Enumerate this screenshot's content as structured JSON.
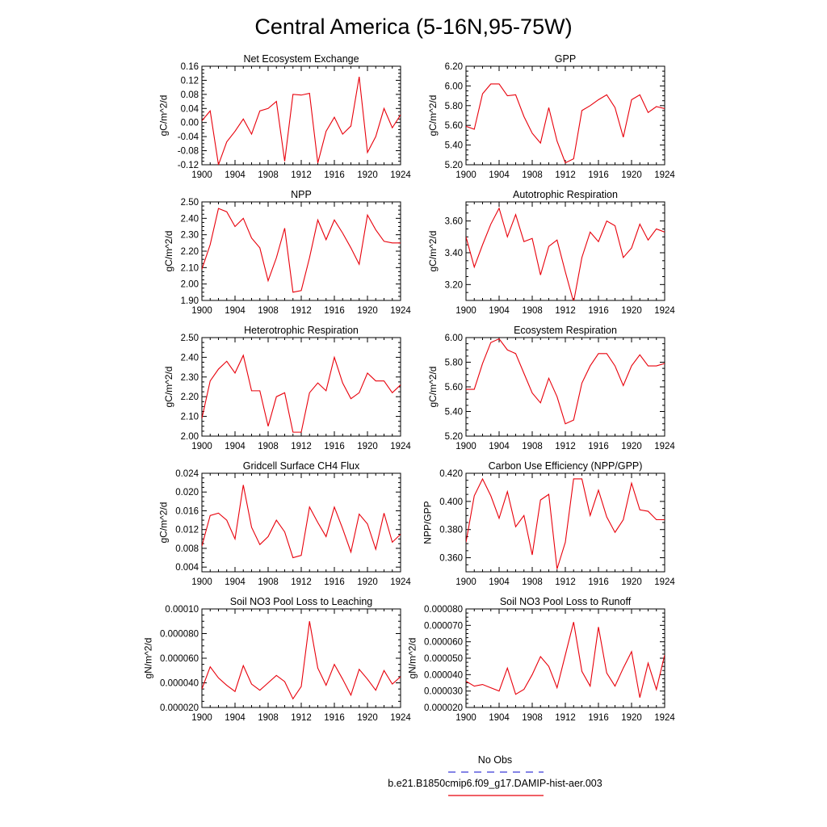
{
  "title": "Central America (5-16N,95-75W)",
  "colors": {
    "model_line": "#e8000b",
    "obs_line": "#3b3bd6"
  },
  "legend": {
    "obs_label": "No Obs",
    "model_label": "b.e21.B1850cmip6.f09_g17.DAMIP-hist-aer.003"
  },
  "chart_data": [
    {
      "type": "line",
      "title": "Net Ecosystem Exchange",
      "ylabel": "gC/m^2/d",
      "xlim": [
        1900,
        1924
      ],
      "ylim": [
        -0.12,
        0.16
      ],
      "xticks": [
        "1900",
        "1904",
        "1908",
        "1912",
        "1916",
        "1920",
        "1924"
      ],
      "yticks": [
        "-0.12",
        "-0.08",
        "-0.04",
        "0.00",
        "0.04",
        "0.08",
        "0.12",
        "0.16"
      ],
      "ytick_values": [
        -0.12,
        -0.08,
        -0.04,
        0.0,
        0.04,
        0.08,
        0.12,
        0.16
      ],
      "x": [
        1900,
        1901,
        1902,
        1903,
        1904,
        1905,
        1906,
        1907,
        1908,
        1909,
        1910,
        1911,
        1912,
        1913,
        1914,
        1915,
        1916,
        1917,
        1918,
        1919,
        1920,
        1921,
        1922,
        1923,
        1924
      ],
      "series": [
        {
          "name": "b.e21.B1850cmip6.f09_g17.DAMIP-hist-aer.003",
          "values": [
            0.005,
            0.033,
            -0.12,
            -0.055,
            -0.025,
            0.01,
            -0.033,
            0.033,
            0.04,
            0.06,
            -0.11,
            0.08,
            0.078,
            0.083,
            -0.115,
            -0.025,
            0.015,
            -0.033,
            -0.01,
            0.13,
            -0.085,
            -0.04,
            0.04,
            -0.015,
            0.022
          ]
        }
      ]
    },
    {
      "type": "line",
      "title": "GPP",
      "ylabel": "gC/m^2/d",
      "xlim": [
        1900,
        1924
      ],
      "ylim": [
        5.2,
        6.2
      ],
      "xticks": [
        "1900",
        "1904",
        "1908",
        "1912",
        "1916",
        "1920",
        "1924"
      ],
      "yticks": [
        "5.20",
        "5.40",
        "5.60",
        "5.80",
        "6.00",
        "6.20"
      ],
      "ytick_values": [
        5.2,
        5.4,
        5.6,
        5.8,
        6.0,
        6.2
      ],
      "x": [
        1900,
        1901,
        1902,
        1903,
        1904,
        1905,
        1906,
        1907,
        1908,
        1909,
        1910,
        1911,
        1912,
        1913,
        1914,
        1915,
        1916,
        1917,
        1918,
        1919,
        1920,
        1921,
        1922,
        1923,
        1924
      ],
      "series": [
        {
          "name": "b.e21.B1850cmip6.f09_g17.DAMIP-hist-aer.003",
          "values": [
            5.59,
            5.56,
            5.92,
            6.02,
            6.02,
            5.9,
            5.91,
            5.69,
            5.52,
            5.42,
            5.78,
            5.44,
            5.22,
            5.26,
            5.75,
            5.8,
            5.86,
            5.91,
            5.78,
            5.48,
            5.86,
            5.91,
            5.73,
            5.79,
            5.77
          ]
        }
      ]
    },
    {
      "type": "line",
      "title": "NPP",
      "ylabel": "gC/m^2/d",
      "xlim": [
        1900,
        1924
      ],
      "ylim": [
        1.9,
        2.5
      ],
      "xticks": [
        "1900",
        "1904",
        "1908",
        "1912",
        "1916",
        "1920",
        "1924"
      ],
      "yticks": [
        "1.90",
        "2.00",
        "2.10",
        "2.20",
        "2.30",
        "2.40",
        "2.50"
      ],
      "ytick_values": [
        1.9,
        2.0,
        2.1,
        2.2,
        2.3,
        2.4,
        2.5
      ],
      "x": [
        1900,
        1901,
        1902,
        1903,
        1904,
        1905,
        1906,
        1907,
        1908,
        1909,
        1910,
        1911,
        1912,
        1913,
        1914,
        1915,
        1916,
        1917,
        1918,
        1919,
        1920,
        1921,
        1922,
        1923,
        1924
      ],
      "series": [
        {
          "name": "b.e21.B1850cmip6.f09_g17.DAMIP-hist-aer.003",
          "values": [
            2.09,
            2.24,
            2.46,
            2.44,
            2.35,
            2.4,
            2.28,
            2.22,
            2.02,
            2.16,
            2.34,
            1.95,
            1.96,
            2.16,
            2.39,
            2.27,
            2.39,
            2.31,
            2.22,
            2.12,
            2.42,
            2.33,
            2.26,
            2.25,
            2.25
          ]
        }
      ]
    },
    {
      "type": "line",
      "title": "Autotrophic Respiration",
      "ylabel": "gC/m^2/d",
      "xlim": [
        1900,
        1924
      ],
      "ylim": [
        3.1,
        3.72
      ],
      "xticks": [
        "1900",
        "1904",
        "1908",
        "1912",
        "1916",
        "1920",
        "1924"
      ],
      "yticks": [
        "3.20",
        "3.40",
        "3.60"
      ],
      "ytick_values": [
        3.2,
        3.4,
        3.6
      ],
      "x": [
        1900,
        1901,
        1902,
        1903,
        1904,
        1905,
        1906,
        1907,
        1908,
        1909,
        1910,
        1911,
        1912,
        1913,
        1914,
        1915,
        1916,
        1917,
        1918,
        1919,
        1920,
        1921,
        1922,
        1923,
        1924
      ],
      "series": [
        {
          "name": "b.e21.B1850cmip6.f09_g17.DAMIP-hist-aer.003",
          "values": [
            3.5,
            3.31,
            3.45,
            3.58,
            3.68,
            3.5,
            3.64,
            3.47,
            3.49,
            3.26,
            3.44,
            3.48,
            3.28,
            3.09,
            3.37,
            3.53,
            3.47,
            3.6,
            3.57,
            3.37,
            3.43,
            3.58,
            3.48,
            3.55,
            3.53
          ]
        }
      ]
    },
    {
      "type": "line",
      "title": "Heterotrophic Respiration",
      "ylabel": "gC/m^2/d",
      "xlim": [
        1900,
        1924
      ],
      "ylim": [
        2.0,
        2.5
      ],
      "xticks": [
        "1900",
        "1904",
        "1908",
        "1912",
        "1916",
        "1920",
        "1924"
      ],
      "yticks": [
        "2.00",
        "2.10",
        "2.20",
        "2.30",
        "2.40",
        "2.50"
      ],
      "ytick_values": [
        2.0,
        2.1,
        2.2,
        2.3,
        2.4,
        2.5
      ],
      "x": [
        1900,
        1901,
        1902,
        1903,
        1904,
        1905,
        1906,
        1907,
        1908,
        1909,
        1910,
        1911,
        1912,
        1913,
        1914,
        1915,
        1916,
        1917,
        1918,
        1919,
        1920,
        1921,
        1922,
        1923,
        1924
      ],
      "series": [
        {
          "name": "b.e21.B1850cmip6.f09_g17.DAMIP-hist-aer.003",
          "values": [
            2.09,
            2.28,
            2.34,
            2.38,
            2.32,
            2.41,
            2.23,
            2.23,
            2.05,
            2.2,
            2.22,
            2.02,
            2.02,
            2.22,
            2.27,
            2.23,
            2.4,
            2.27,
            2.19,
            2.22,
            2.32,
            2.28,
            2.28,
            2.22,
            2.26
          ]
        }
      ]
    },
    {
      "type": "line",
      "title": "Ecosystem Respiration",
      "ylabel": "gC/m^2/d",
      "xlim": [
        1900,
        1924
      ],
      "ylim": [
        5.2,
        6.0
      ],
      "xticks": [
        "1900",
        "1904",
        "1908",
        "1912",
        "1916",
        "1920",
        "1924"
      ],
      "yticks": [
        "5.20",
        "5.40",
        "5.60",
        "5.80",
        "6.00"
      ],
      "ytick_values": [
        5.2,
        5.4,
        5.6,
        5.8,
        6.0
      ],
      "x": [
        1900,
        1901,
        1902,
        1903,
        1904,
        1905,
        1906,
        1907,
        1908,
        1909,
        1910,
        1911,
        1912,
        1913,
        1914,
        1915,
        1916,
        1917,
        1918,
        1919,
        1920,
        1921,
        1922,
        1923,
        1924
      ],
      "series": [
        {
          "name": "b.e21.B1850cmip6.f09_g17.DAMIP-hist-aer.003",
          "values": [
            5.58,
            5.58,
            5.79,
            5.96,
            5.99,
            5.9,
            5.87,
            5.71,
            5.55,
            5.47,
            5.67,
            5.52,
            5.3,
            5.33,
            5.63,
            5.77,
            5.87,
            5.87,
            5.77,
            5.61,
            5.77,
            5.86,
            5.77,
            5.77,
            5.79
          ]
        }
      ]
    },
    {
      "type": "line",
      "title": "Gridcell Surface CH4 Flux",
      "ylabel": "gC/m^2/d",
      "xlim": [
        1900,
        1924
      ],
      "ylim": [
        0.003,
        0.024
      ],
      "xticks": [
        "1900",
        "1904",
        "1908",
        "1912",
        "1916",
        "1920",
        "1924"
      ],
      "yticks": [
        "0.004",
        "0.008",
        "0.012",
        "0.016",
        "0.020",
        "0.024"
      ],
      "ytick_values": [
        0.004,
        0.008,
        0.012,
        0.016,
        0.02,
        0.024
      ],
      "x": [
        1900,
        1901,
        1902,
        1903,
        1904,
        1905,
        1906,
        1907,
        1908,
        1909,
        1910,
        1911,
        1912,
        1913,
        1914,
        1915,
        1916,
        1917,
        1918,
        1919,
        1920,
        1921,
        1922,
        1923,
        1924
      ],
      "series": [
        {
          "name": "b.e21.B1850cmip6.f09_g17.DAMIP-hist-aer.003",
          "values": [
            0.0085,
            0.015,
            0.0155,
            0.014,
            0.01,
            0.0215,
            0.0125,
            0.0088,
            0.0105,
            0.014,
            0.0115,
            0.006,
            0.0065,
            0.0168,
            0.0135,
            0.0105,
            0.0168,
            0.0122,
            0.0072,
            0.0153,
            0.0132,
            0.0078,
            0.0155,
            0.0093,
            0.011
          ]
        }
      ]
    },
    {
      "type": "line",
      "title": "Carbon Use Efficiency (NPP/GPP)",
      "ylabel": "NPP/GPP",
      "xlim": [
        1900,
        1924
      ],
      "ylim": [
        0.35,
        0.42
      ],
      "xticks": [
        "1900",
        "1904",
        "1908",
        "1912",
        "1916",
        "1920",
        "1924"
      ],
      "yticks": [
        "0.360",
        "0.380",
        "0.400",
        "0.420"
      ],
      "ytick_values": [
        0.36,
        0.38,
        0.4,
        0.42
      ],
      "x": [
        1900,
        1901,
        1902,
        1903,
        1904,
        1905,
        1906,
        1907,
        1908,
        1909,
        1910,
        1911,
        1912,
        1913,
        1914,
        1915,
        1916,
        1917,
        1918,
        1919,
        1920,
        1921,
        1922,
        1923,
        1924
      ],
      "series": [
        {
          "name": "b.e21.B1850cmip6.f09_g17.DAMIP-hist-aer.003",
          "values": [
            0.371,
            0.404,
            0.416,
            0.404,
            0.388,
            0.407,
            0.382,
            0.39,
            0.362,
            0.401,
            0.405,
            0.352,
            0.371,
            0.416,
            0.416,
            0.39,
            0.408,
            0.389,
            0.378,
            0.387,
            0.413,
            0.394,
            0.393,
            0.387,
            0.387
          ]
        }
      ]
    },
    {
      "type": "line",
      "title": "Soil NO3 Pool Loss to Leaching",
      "ylabel": "gN/m^2/d",
      "xlim": [
        1900,
        1924
      ],
      "ylim": [
        2e-05,
        0.0001
      ],
      "xticks": [
        "1900",
        "1904",
        "1908",
        "1912",
        "1916",
        "1920",
        "1924"
      ],
      "yticks": [
        "0.000020",
        "0.000040",
        "0.000060",
        "0.000080",
        "0.00010"
      ],
      "ytick_values": [
        2e-05,
        4e-05,
        6e-05,
        8e-05,
        0.0001
      ],
      "x": [
        1900,
        1901,
        1902,
        1903,
        1904,
        1905,
        1906,
        1907,
        1908,
        1909,
        1910,
        1911,
        1912,
        1913,
        1914,
        1915,
        1916,
        1917,
        1918,
        1919,
        1920,
        1921,
        1922,
        1923,
        1924
      ],
      "series": [
        {
          "name": "b.e21.B1850cmip6.f09_g17.DAMIP-hist-aer.003",
          "values": [
            3.5e-05,
            5.3e-05,
            4.4e-05,
            3.8e-05,
            3.3e-05,
            5.4e-05,
            3.9e-05,
            3.4e-05,
            4e-05,
            4.6e-05,
            4.1e-05,
            2.7e-05,
            3.7e-05,
            9e-05,
            5.2e-05,
            3.8e-05,
            5.5e-05,
            4.3e-05,
            3e-05,
            5.1e-05,
            4.3e-05,
            3.4e-05,
            5e-05,
            3.9e-05,
            4.5e-05
          ]
        }
      ]
    },
    {
      "type": "line",
      "title": "Soil NO3 Pool Loss to Runoff",
      "ylabel": "gN/m^2/d",
      "xlim": [
        1900,
        1924
      ],
      "ylim": [
        2e-05,
        8e-05
      ],
      "xticks": [
        "1900",
        "1904",
        "1908",
        "1912",
        "1916",
        "1920",
        "1924"
      ],
      "yticks": [
        "0.000020",
        "0.000030",
        "0.000040",
        "0.000050",
        "0.000060",
        "0.000070",
        "0.000080"
      ],
      "ytick_values": [
        2e-05,
        3e-05,
        4e-05,
        5e-05,
        6e-05,
        7e-05,
        8e-05
      ],
      "x": [
        1900,
        1901,
        1902,
        1903,
        1904,
        1905,
        1906,
        1907,
        1908,
        1909,
        1910,
        1911,
        1912,
        1913,
        1914,
        1915,
        1916,
        1917,
        1918,
        1919,
        1920,
        1921,
        1922,
        1923,
        1924
      ],
      "series": [
        {
          "name": "b.e21.B1850cmip6.f09_g17.DAMIP-hist-aer.003",
          "values": [
            3.6e-05,
            3.3e-05,
            3.4e-05,
            3.2e-05,
            3e-05,
            4.4e-05,
            2.8e-05,
            3.1e-05,
            4e-05,
            5.1e-05,
            4.5e-05,
            3.2e-05,
            5.2e-05,
            7.2e-05,
            4.2e-05,
            3.3e-05,
            6.9e-05,
            4.1e-05,
            3.3e-05,
            4.4e-05,
            5.4e-05,
            2.6e-05,
            4.7e-05,
            3.1e-05,
            5.2e-05
          ]
        }
      ]
    }
  ]
}
